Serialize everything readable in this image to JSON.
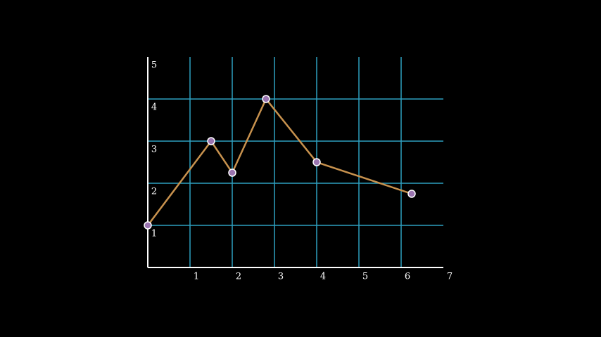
{
  "chart_data": {
    "type": "line",
    "x": [
      0,
      1.5,
      2,
      2.8,
      4,
      6.25
    ],
    "series": [
      {
        "color": "#c8924e",
        "values": [
          1,
          3,
          2.25,
          4,
          2.5,
          1.75
        ]
      }
    ],
    "xlim": [
      0,
      7
    ],
    "ylim": [
      0,
      5
    ],
    "xticks": [
      1,
      2,
      3,
      4,
      5,
      6,
      7
    ],
    "yticks": [
      1,
      2,
      3,
      4,
      5
    ],
    "grid": true,
    "grid_color": "#2e9fc0",
    "marker_color": "#9a74b0"
  }
}
